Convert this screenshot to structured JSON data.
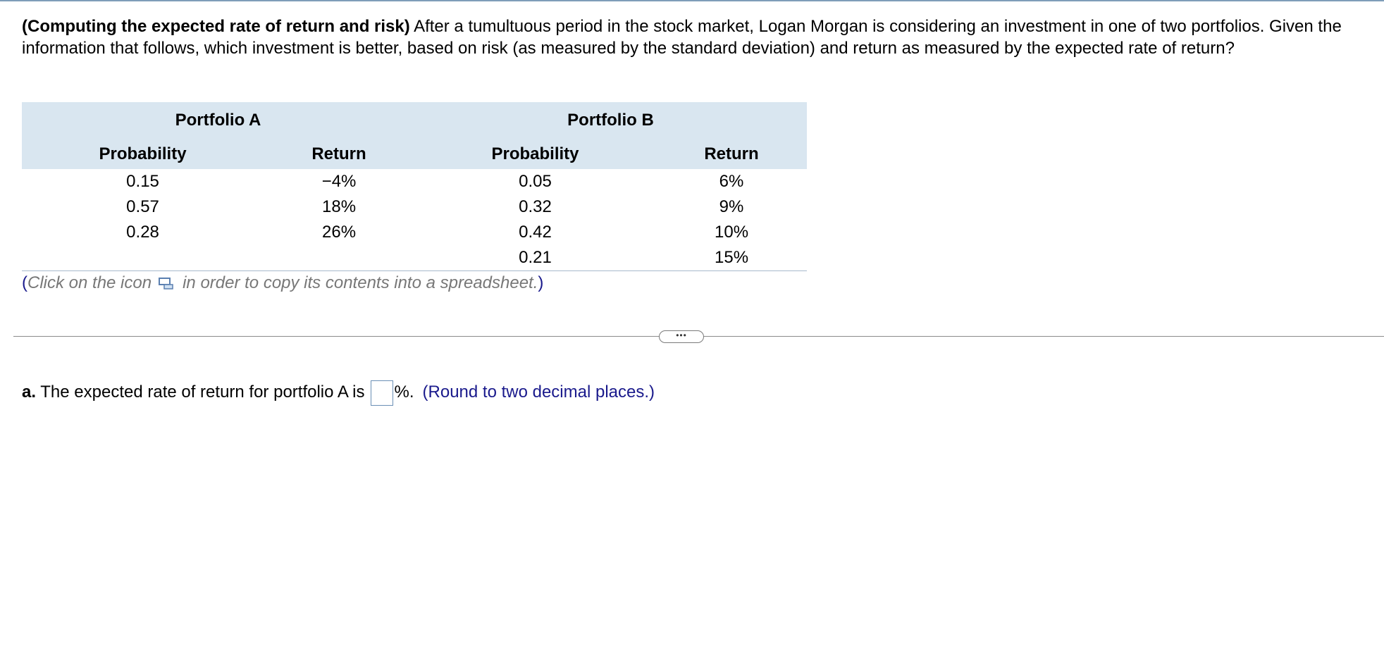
{
  "question": {
    "title": "(Computing the expected rate of return and risk)",
    "body": " After a tumultuous period in the stock market, Logan Morgan is considering an investment in one of two portfolios. Given the information that follows, which investment is better, based on risk (as measured by the standard deviation) and return as measured by the expected rate of return?"
  },
  "table": {
    "groups": [
      "Portfolio A",
      "Portfolio B"
    ],
    "columns": [
      "Probability",
      "Return",
      "Probability",
      "Return"
    ],
    "rows": [
      [
        "0.15",
        "−4%",
        "0.05",
        "6%"
      ],
      [
        "0.57",
        "18%",
        "0.32",
        "9%"
      ],
      [
        "0.28",
        "26%",
        "0.42",
        "10%"
      ],
      [
        "",
        "",
        "0.21",
        "15%"
      ]
    ]
  },
  "copy_note": {
    "open_paren": "(",
    "before_icon": "Click on the icon",
    "after_icon": "in order to copy its contents into a spreadsheet.",
    "close_paren": ")"
  },
  "more_button": {
    "label": "•••"
  },
  "answer": {
    "part_label": "a.",
    "text_before": " The expected rate of return for portfolio A is",
    "value": "",
    "unit_after": "%.",
    "hint": "(Round to two decimal places.)"
  },
  "colors": {
    "table_header_bg": "#d9e6f0",
    "hint_blue": "#1a1a8c",
    "note_gray": "#777777"
  }
}
